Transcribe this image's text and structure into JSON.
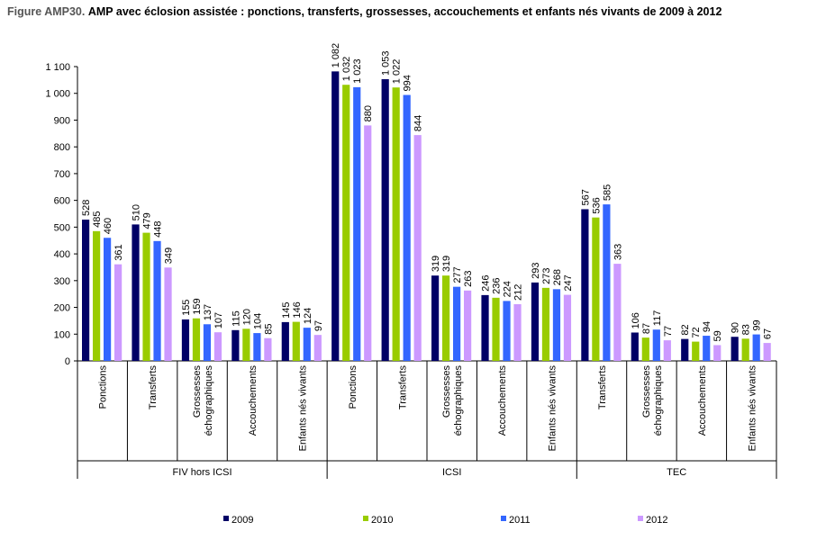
{
  "title": {
    "prefix": "Figure AMP30.",
    "text": "AMP avec éclosion assistée : ponctions, transferts, grossesses, accouchements et enfants nés vivants de 2009 à 2012"
  },
  "colors": {
    "2009": "#000066",
    "2010": "#99cc00",
    "2011": "#3366ff",
    "2012": "#cc99ff"
  },
  "chart_data": {
    "type": "bar",
    "title": "AMP avec éclosion assistée : ponctions, transferts, grossesses, accouchements et enfants nés vivants de 2009 à 2012",
    "ylim": [
      0,
      1100
    ],
    "yticks": [
      0,
      100,
      200,
      300,
      400,
      500,
      600,
      700,
      800,
      900,
      1000,
      1100
    ],
    "ytick_labels": [
      "0",
      "100",
      "200",
      "300",
      "400",
      "500",
      "600",
      "700",
      "800",
      "900",
      "1 000",
      "1 100"
    ],
    "grid": false,
    "legend_position": "bottom",
    "groups": [
      {
        "label": "FIV hors ICSI",
        "start": 0,
        "end": 5
      },
      {
        "label": "ICSI",
        "start": 5,
        "end": 10
      },
      {
        "label": "TEC",
        "start": 10,
        "end": 14
      }
    ],
    "categories": [
      "Ponctions",
      "Transferts",
      "Grossesses échographiques",
      "Accouchements",
      "Enfants nés vivants",
      "Ponctions",
      "Transferts",
      "Grossesses échographiques",
      "Accouchements",
      "Enfants nés vivants",
      "Transferts",
      "Grossesses échographiques",
      "Accouchements",
      "Enfants nés vivants"
    ],
    "category_lines": [
      [
        "Ponctions"
      ],
      [
        "Transferts"
      ],
      [
        "Grossesses",
        "échographiques"
      ],
      [
        "Accouchements"
      ],
      [
        "Enfants nés vivants"
      ],
      [
        "Ponctions"
      ],
      [
        "Transferts"
      ],
      [
        "Grossesses",
        "échographiques"
      ],
      [
        "Accouchements"
      ],
      [
        "Enfants nés vivants"
      ],
      [
        "Transferts"
      ],
      [
        "Grossesses",
        "échographiques"
      ],
      [
        "Accouchements"
      ],
      [
        "Enfants nés vivants"
      ]
    ],
    "series": [
      {
        "name": "2009",
        "values": [
          528,
          510,
          155,
          115,
          145,
          1082,
          1053,
          319,
          246,
          293,
          567,
          106,
          82,
          90
        ],
        "labels": [
          "528",
          "510",
          "155",
          "115",
          "145",
          "1 082",
          "1 053",
          "319",
          "246",
          "293",
          "567",
          "106",
          "82",
          "90"
        ]
      },
      {
        "name": "2010",
        "values": [
          485,
          479,
          159,
          120,
          146,
          1032,
          1022,
          319,
          236,
          273,
          536,
          87,
          72,
          83
        ],
        "labels": [
          "485",
          "479",
          "159",
          "120",
          "146",
          "1 032",
          "1 022",
          "319",
          "236",
          "273",
          "536",
          "87",
          "72",
          "83"
        ]
      },
      {
        "name": "2011",
        "values": [
          460,
          448,
          137,
          104,
          124,
          1023,
          994,
          277,
          224,
          268,
          585,
          117,
          94,
          99
        ],
        "labels": [
          "460",
          "448",
          "137",
          "104",
          "124",
          "1 023",
          "994",
          "277",
          "224",
          "268",
          "585",
          "117",
          "94",
          "99"
        ]
      },
      {
        "name": "2012",
        "values": [
          361,
          349,
          107,
          85,
          97,
          880,
          844,
          263,
          212,
          247,
          363,
          77,
          59,
          67
        ],
        "labels": [
          "361",
          "349",
          "107",
          "85",
          "97",
          "880",
          "844",
          "263",
          "212",
          "247",
          "363",
          "77",
          "59",
          "67"
        ]
      }
    ]
  }
}
